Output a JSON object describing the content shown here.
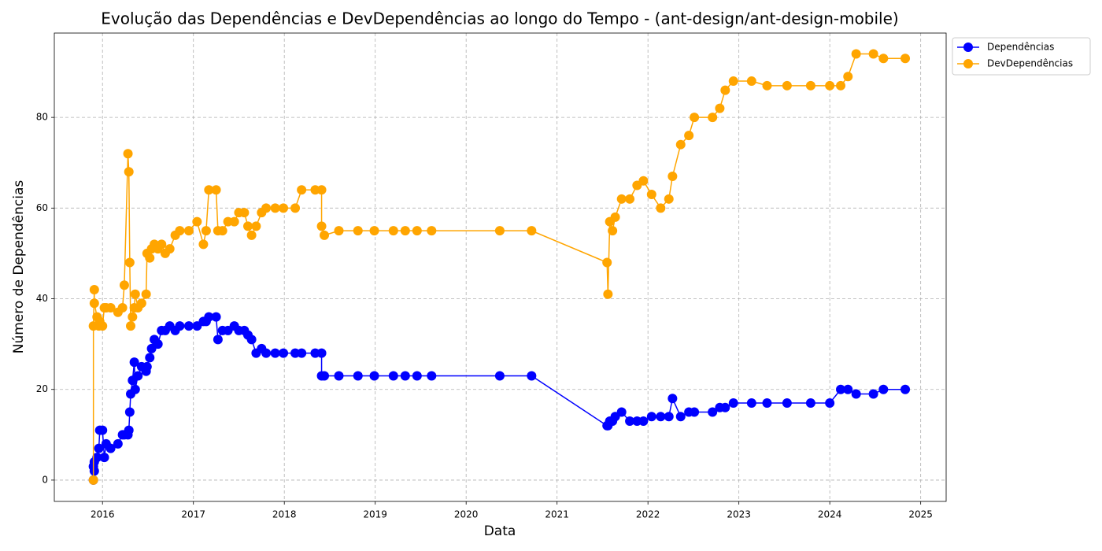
{
  "chart_data": {
    "type": "line",
    "title": "Evolução das Dependências e DevDependências ao longo do Tempo - (ant-design/ant-design-mobile)",
    "x_label": "Data",
    "y_label": "Número de Dependências",
    "x": [
      2015.9,
      2015.9,
      2015.91,
      2015.91,
      2015.94,
      2015.96,
      2015.97,
      2016.0,
      2016.02,
      2016.04,
      2016.09,
      2016.17,
      2016.22,
      2016.24,
      2016.28,
      2016.29,
      2016.3,
      2016.31,
      2016.33,
      2016.35,
      2016.36,
      2016.39,
      2016.43,
      2016.48,
      2016.49,
      2016.52,
      2016.54,
      2016.57,
      2016.61,
      2016.65,
      2016.69,
      2016.74,
      2016.8,
      2016.85,
      2016.95,
      2017.04,
      2017.11,
      2017.14,
      2017.17,
      2017.25,
      2017.27,
      2017.32,
      2017.38,
      2017.45,
      2017.5,
      2017.56,
      2017.6,
      2017.64,
      2017.69,
      2017.75,
      2017.8,
      2017.9,
      2017.99,
      2018.12,
      2018.19,
      2018.34,
      2018.41,
      2018.41,
      2018.44,
      2018.6,
      2018.81,
      2018.99,
      2019.2,
      2019.33,
      2019.46,
      2019.62,
      2020.37,
      2020.72,
      2021.55,
      2021.56,
      2021.58,
      2021.61,
      2021.64,
      2021.71,
      2021.8,
      2021.88,
      2021.95,
      2022.04,
      2022.14,
      2022.23,
      2022.27,
      2022.36,
      2022.45,
      2022.51,
      2022.71,
      2022.79,
      2022.85,
      2022.94,
      2023.14,
      2023.31,
      2023.53,
      2023.79,
      2024.0,
      2024.12,
      2024.2,
      2024.29,
      2024.48,
      2024.59,
      2024.83
    ],
    "series": [
      {
        "name": "Dependências",
        "color": "#0000ff",
        "values": [
          0,
          3,
          4,
          2,
          5,
          7,
          11,
          11,
          5,
          8,
          7,
          8,
          10,
          10,
          10,
          11,
          15,
          19,
          22,
          26,
          20,
          23,
          25,
          24,
          25,
          27,
          29,
          31,
          30,
          33,
          33,
          34,
          33,
          34,
          34,
          34,
          35,
          35,
          36,
          36,
          31,
          33,
          33,
          34,
          33,
          33,
          32,
          31,
          28,
          29,
          28,
          28,
          28,
          28,
          28,
          28,
          28,
          23,
          23,
          23,
          23,
          23,
          23,
          23,
          23,
          23,
          23,
          23,
          12,
          12,
          13,
          13,
          14,
          15,
          13,
          13,
          13,
          14,
          14,
          14,
          18,
          14,
          15,
          15,
          15,
          16,
          16,
          17,
          17,
          17,
          17,
          17,
          17,
          20,
          20,
          19,
          19,
          20,
          20
        ]
      },
      {
        "name": "DevDependências",
        "color": "#ffa500",
        "values": [
          0,
          34,
          42,
          39,
          36,
          34,
          35,
          34,
          38,
          38,
          38,
          37,
          38,
          43,
          72,
          68,
          48,
          34,
          36,
          38,
          41,
          38,
          39,
          41,
          50,
          49,
          51,
          52,
          51,
          52,
          50,
          51,
          54,
          55,
          55,
          57,
          52,
          55,
          64,
          64,
          55,
          55,
          57,
          57,
          59,
          59,
          56,
          54,
          56,
          59,
          60,
          60,
          60,
          60,
          64,
          64,
          64,
          56,
          54,
          55,
          55,
          55,
          55,
          55,
          55,
          55,
          55,
          55,
          48,
          41,
          57,
          55,
          58,
          62,
          62,
          65,
          66,
          63,
          60,
          62,
          67,
          74,
          76,
          80,
          80,
          82,
          86,
          88,
          88,
          87,
          87,
          87,
          87,
          87,
          89,
          94,
          94,
          93,
          93
        ]
      }
    ],
    "xlim": [
      2015.47,
      2025.28
    ],
    "xticks": [
      2016,
      2017,
      2018,
      2019,
      2020,
      2021,
      2022,
      2023,
      2024,
      2025
    ],
    "ylim": [
      -4.7,
      98.6
    ],
    "yticks": [
      0,
      20,
      40,
      60,
      80
    ],
    "grid": true,
    "legend": "outside upper right"
  }
}
